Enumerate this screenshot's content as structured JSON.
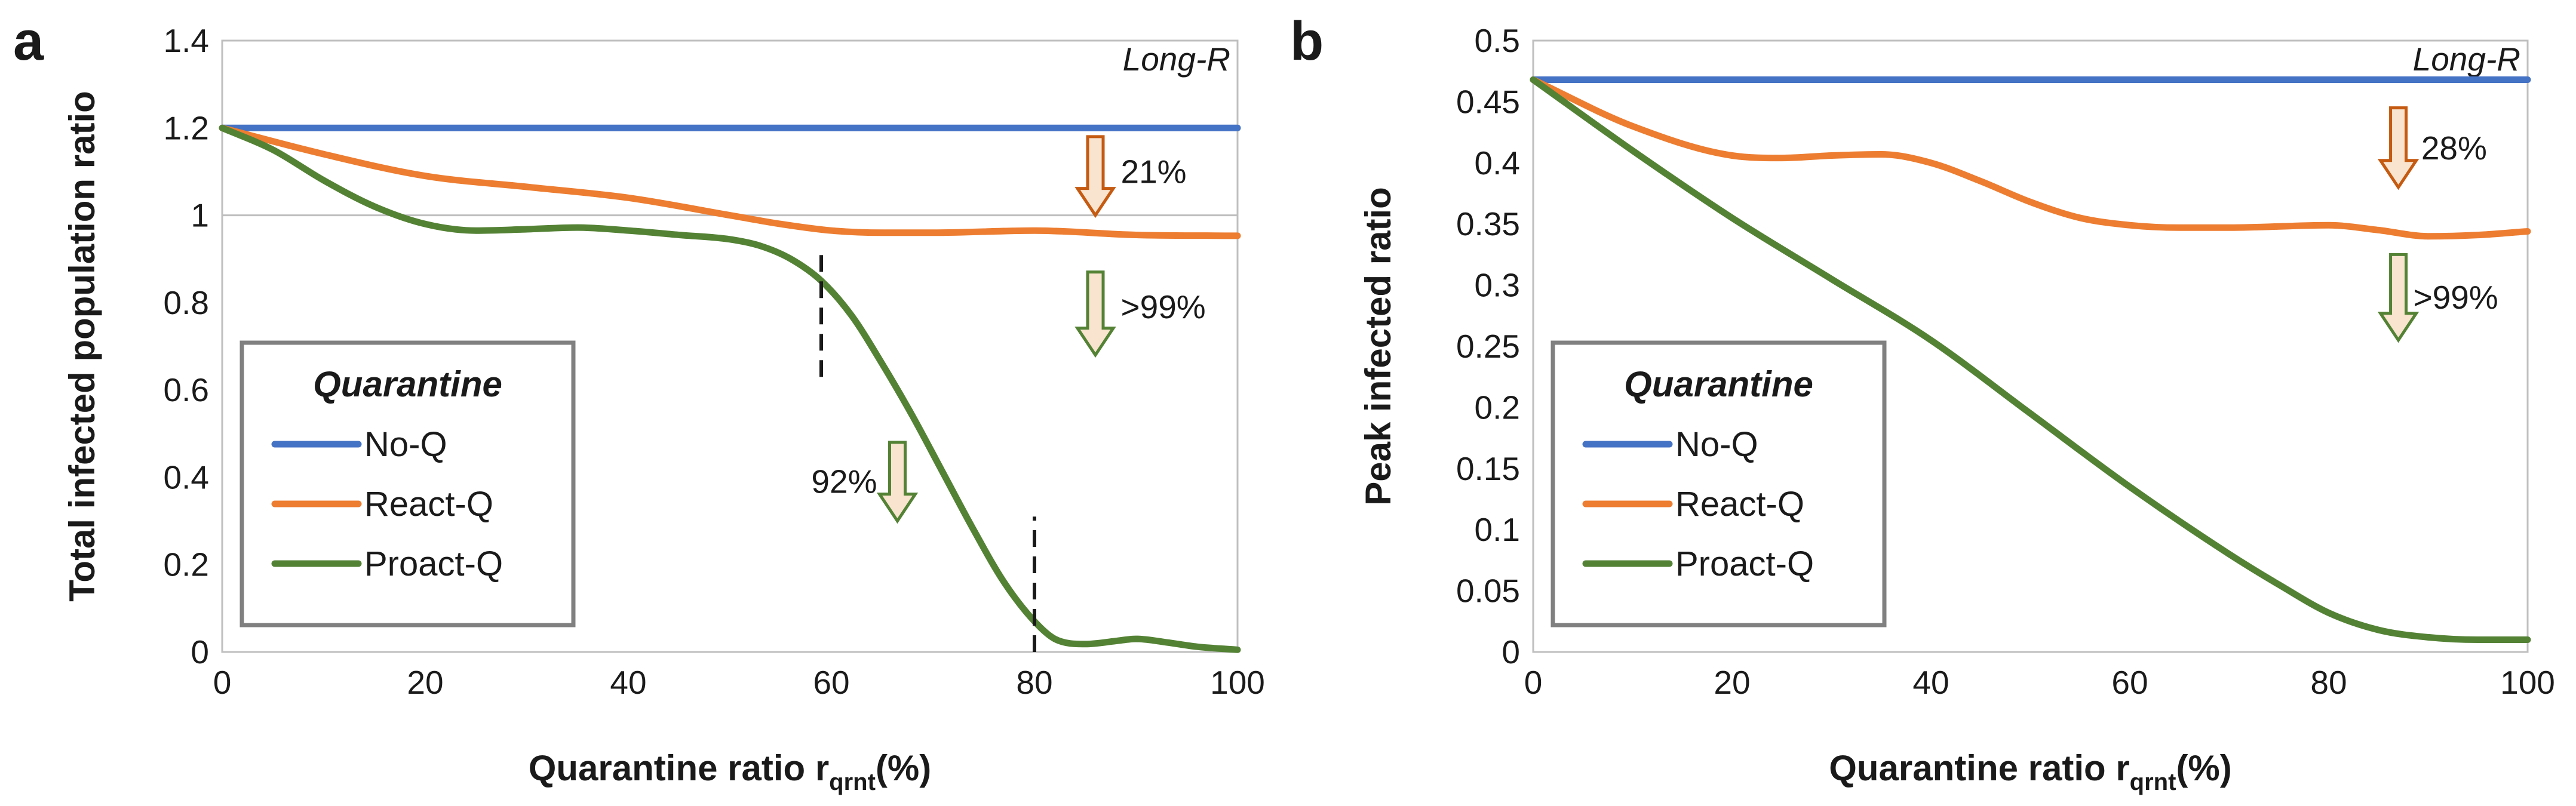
{
  "chart_data": [
    {
      "type": "line",
      "panel_label": "a",
      "title": "",
      "xlabel": "Quarantine ratio r",
      "xlabel_sub": "qrnt",
      "xlabel_suffix": "(%)",
      "ylabel": "Total infected population ratio",
      "xlim": [
        0,
        100
      ],
      "ylim": [
        0,
        1.4
      ],
      "xticks": [
        0,
        20,
        40,
        60,
        80,
        100
      ],
      "yticks": [
        0,
        0.2,
        0.4,
        0.6,
        0.8,
        1,
        1.2,
        1.4
      ],
      "ytick_labels": [
        "0",
        "0.2",
        "0.4",
        "0.6",
        "0.8",
        "1",
        "1.2",
        "1.4"
      ],
      "gridlines_y": [
        1
      ],
      "corner_label": "Long-R",
      "legend": {
        "title": "Quarantine",
        "placement": "lower-left"
      },
      "series": [
        {
          "name": "No-Q",
          "color": "#4472c4",
          "x": [
            0,
            100
          ],
          "y": [
            1.2,
            1.2
          ]
        },
        {
          "name": "React-Q",
          "color": "#ed7d31",
          "x": [
            0,
            10,
            20,
            30,
            40,
            50,
            55,
            60,
            65,
            70,
            80,
            90,
            100
          ],
          "y": [
            1.2,
            1.14,
            1.09,
            1.065,
            1.04,
            1.0,
            0.98,
            0.965,
            0.96,
            0.96,
            0.965,
            0.955,
            0.953
          ]
        },
        {
          "name": "Proact-Q",
          "color": "#548235",
          "x": [
            0,
            5,
            10,
            15,
            20,
            25,
            30,
            35,
            40,
            45,
            50,
            53,
            56,
            59,
            62,
            65,
            68,
            71,
            74,
            77,
            80,
            82,
            85,
            88,
            90,
            93,
            96,
            100
          ],
          "y": [
            1.2,
            1.15,
            1.08,
            1.02,
            0.98,
            0.965,
            0.968,
            0.972,
            0.965,
            0.955,
            0.945,
            0.93,
            0.9,
            0.85,
            0.77,
            0.66,
            0.54,
            0.41,
            0.28,
            0.16,
            0.07,
            0.03,
            0.018,
            0.025,
            0.03,
            0.022,
            0.012,
            0.005
          ]
        }
      ],
      "vlines": [
        {
          "x": 59,
          "y_from": 0.63,
          "y_to": 0.93
        },
        {
          "x": 80,
          "y_from": 0.0,
          "y_to": 0.31
        }
      ],
      "annotations": [
        {
          "text": "21%",
          "arrow_color": "#c55a11",
          "arrow_x": 86,
          "arrow_y_top": 1.18,
          "arrow_y_bottom": 1.0,
          "text_x": 88.5,
          "text_y": 1.1
        },
        {
          "text": ">99%",
          "arrow_color": "#548235",
          "arrow_x": 86,
          "arrow_y_top": 0.87,
          "arrow_y_bottom": 0.68,
          "text_x": 88.5,
          "text_y": 0.79
        },
        {
          "text": "92%",
          "arrow_color": "#548235",
          "arrow_x": 66.5,
          "arrow_y_top": 0.48,
          "arrow_y_bottom": 0.3,
          "text_x": 64.5,
          "text_y": 0.39
        }
      ]
    },
    {
      "type": "line",
      "panel_label": "b",
      "title": "",
      "xlabel": "Quarantine ratio r",
      "xlabel_sub": "qrnt",
      "xlabel_suffix": "(%)",
      "ylabel": "Peak infected ratio",
      "xlim": [
        0,
        100
      ],
      "ylim": [
        0,
        0.5
      ],
      "xticks": [
        0,
        20,
        40,
        60,
        80,
        100
      ],
      "yticks": [
        0,
        0.05,
        0.1,
        0.15,
        0.2,
        0.25,
        0.3,
        0.35,
        0.4,
        0.45,
        0.5
      ],
      "ytick_labels": [
        "0",
        "0.05",
        "0.1",
        "0.15",
        "0.2",
        "0.25",
        "0.3",
        "0.35",
        "0.4",
        "0.45",
        "0.5"
      ],
      "gridlines_y": [],
      "corner_label": "Long-R",
      "legend": {
        "title": "Quarantine",
        "placement": "lower-left"
      },
      "series": [
        {
          "name": "No-Q",
          "color": "#4472c4",
          "x": [
            0,
            100
          ],
          "y": [
            0.468,
            0.468
          ]
        },
        {
          "name": "React-Q",
          "color": "#ed7d31",
          "x": [
            0,
            10,
            20,
            25,
            30,
            35,
            40,
            45,
            50,
            55,
            60,
            65,
            70,
            80,
            85,
            90,
            95,
            100
          ],
          "y": [
            0.468,
            0.43,
            0.406,
            0.404,
            0.406,
            0.407,
            0.4,
            0.385,
            0.368,
            0.355,
            0.349,
            0.347,
            0.347,
            0.349,
            0.345,
            0.34,
            0.341,
            0.344
          ]
        },
        {
          "name": "Proact-Q",
          "color": "#548235",
          "x": [
            0,
            10,
            20,
            30,
            40,
            50,
            60,
            70,
            75,
            80,
            85,
            90,
            95,
            100
          ],
          "y": [
            0.468,
            0.41,
            0.355,
            0.305,
            0.255,
            0.195,
            0.135,
            0.08,
            0.055,
            0.032,
            0.018,
            0.012,
            0.01,
            0.01
          ]
        }
      ],
      "vlines": [],
      "annotations": [
        {
          "text": "28%",
          "arrow_color": "#c55a11",
          "arrow_x": 87,
          "arrow_y_top": 0.445,
          "arrow_y_bottom": 0.38,
          "text_x": 89.3,
          "text_y": 0.412
        },
        {
          "text": ">99%",
          "arrow_color": "#548235",
          "arrow_x": 87,
          "arrow_y_top": 0.325,
          "arrow_y_bottom": 0.255,
          "text_x": 88.5,
          "text_y": 0.29
        }
      ]
    }
  ]
}
